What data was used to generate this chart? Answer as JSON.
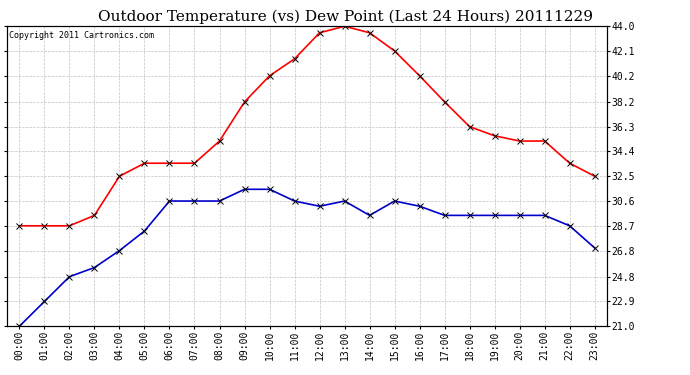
{
  "title": "Outdoor Temperature (vs) Dew Point (Last 24 Hours) 20111229",
  "copyright": "Copyright 2011 Cartronics.com",
  "hours": [
    "00:00",
    "01:00",
    "02:00",
    "03:00",
    "04:00",
    "05:00",
    "06:00",
    "07:00",
    "08:00",
    "09:00",
    "10:00",
    "11:00",
    "12:00",
    "13:00",
    "14:00",
    "15:00",
    "16:00",
    "17:00",
    "18:00",
    "19:00",
    "20:00",
    "21:00",
    "22:00",
    "23:00"
  ],
  "temp": [
    28.7,
    28.7,
    28.7,
    29.5,
    32.5,
    33.5,
    33.5,
    33.5,
    35.2,
    38.2,
    40.2,
    41.5,
    43.5,
    44.0,
    43.5,
    42.1,
    40.2,
    38.2,
    36.3,
    35.6,
    35.2,
    35.2,
    33.5,
    32.5
  ],
  "dew": [
    21.0,
    22.9,
    24.8,
    25.5,
    26.8,
    28.3,
    30.6,
    30.6,
    30.6,
    31.5,
    31.5,
    30.6,
    30.2,
    30.6,
    29.5,
    30.6,
    30.2,
    29.5,
    29.5,
    29.5,
    29.5,
    29.5,
    28.7,
    27.0
  ],
  "temp_color": "#ff0000",
  "dew_color": "#0000cc",
  "bg_color": "#ffffff",
  "plot_bg": "#ffffff",
  "grid_color": "#bbbbbb",
  "ylim": [
    21.0,
    44.0
  ],
  "yticks": [
    21.0,
    22.9,
    24.8,
    26.8,
    28.7,
    30.6,
    32.5,
    34.4,
    36.3,
    38.2,
    40.2,
    42.1,
    44.0
  ],
  "marker": "x",
  "marker_size": 4,
  "linewidth": 1.2,
  "title_fontsize": 11,
  "copyright_fontsize": 6,
  "tick_fontsize": 7
}
